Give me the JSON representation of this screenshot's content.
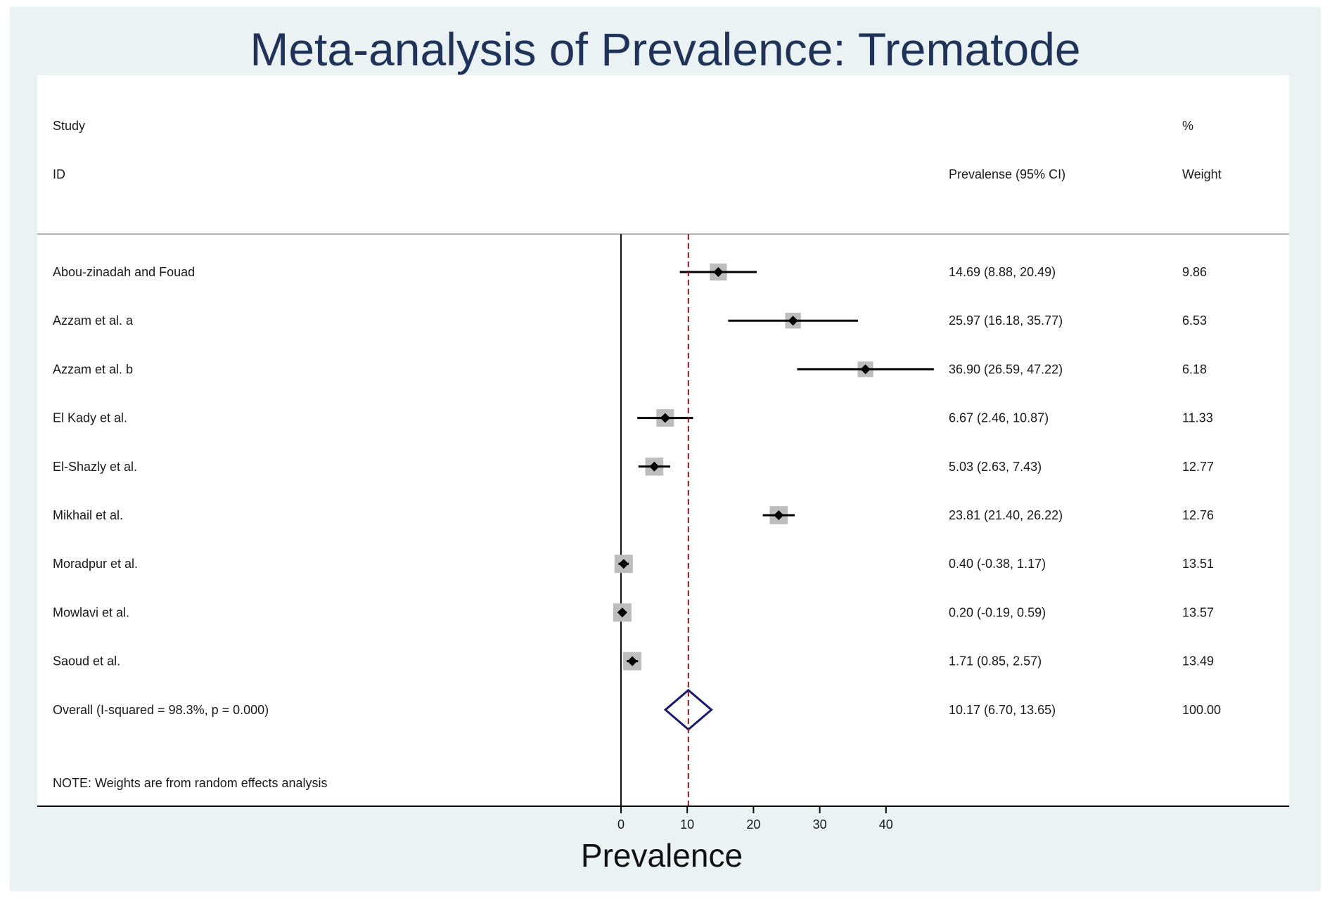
{
  "chart_data": {
    "type": "forest",
    "title": "Meta-analysis of Prevalence: Trematode",
    "xlabel": "Prevalence",
    "xlim": [
      0,
      40
    ],
    "x_ticks": [
      0,
      10,
      20,
      30,
      40
    ],
    "header": {
      "study_line1": "Study",
      "study_line2": "ID",
      "effect_label": "Prevalense (95% CI)",
      "weight_line1": "%",
      "weight_line2": "Weight"
    },
    "studies": [
      {
        "name": "Abou-zinadah and Fouad",
        "est": 14.69,
        "lo": 8.88,
        "hi": 20.49,
        "ci_text": "14.69 (8.88, 20.49)",
        "weight": 9.86,
        "weight_text": "9.86"
      },
      {
        "name": "Azzam et al. a",
        "est": 25.97,
        "lo": 16.18,
        "hi": 35.77,
        "ci_text": "25.97 (16.18, 35.77)",
        "weight": 6.53,
        "weight_text": "6.53"
      },
      {
        "name": "Azzam et al. b",
        "est": 36.9,
        "lo": 26.59,
        "hi": 47.22,
        "ci_text": "36.90 (26.59, 47.22)",
        "weight": 6.18,
        "weight_text": "6.18"
      },
      {
        "name": "El Kady et al.",
        "est": 6.67,
        "lo": 2.46,
        "hi": 10.87,
        "ci_text": "6.67 (2.46, 10.87)",
        "weight": 11.33,
        "weight_text": "11.33"
      },
      {
        "name": "El-Shazly et al.",
        "est": 5.03,
        "lo": 2.63,
        "hi": 7.43,
        "ci_text": "5.03 (2.63, 7.43)",
        "weight": 12.77,
        "weight_text": "12.77"
      },
      {
        "name": "Mikhail et al.",
        "est": 23.81,
        "lo": 21.4,
        "hi": 26.22,
        "ci_text": "23.81 (21.40, 26.22)",
        "weight": 12.76,
        "weight_text": "12.76"
      },
      {
        "name": "Moradpur et al.",
        "est": 0.4,
        "lo": -0.38,
        "hi": 1.17,
        "ci_text": "0.40 (-0.38, 1.17)",
        "weight": 13.51,
        "weight_text": "13.51"
      },
      {
        "name": "Mowlavi et al.",
        "est": 0.2,
        "lo": -0.19,
        "hi": 0.59,
        "ci_text": "0.20 (-0.19, 0.59)",
        "weight": 13.57,
        "weight_text": "13.57"
      },
      {
        "name": "Saoud et al.",
        "est": 1.71,
        "lo": 0.85,
        "hi": 2.57,
        "ci_text": "1.71 (0.85, 2.57)",
        "weight": 13.49,
        "weight_text": "13.49"
      }
    ],
    "overall": {
      "name": "Overall  (I-squared = 98.3%, p = 0.000)",
      "est": 10.17,
      "lo": 6.7,
      "hi": 13.65,
      "ci_text": "10.17 (6.70, 13.65)",
      "weight": 100.0,
      "weight_text": "100.00"
    },
    "note": "NOTE: Weights are from random effects analysis",
    "colors": {
      "background": "#eaf2f3",
      "panel": "#ffffff",
      "title": "#1f3258",
      "box": "#bdbdbd",
      "reference_line": "#8b1a1a",
      "diamond": "#1a1a6e"
    }
  }
}
